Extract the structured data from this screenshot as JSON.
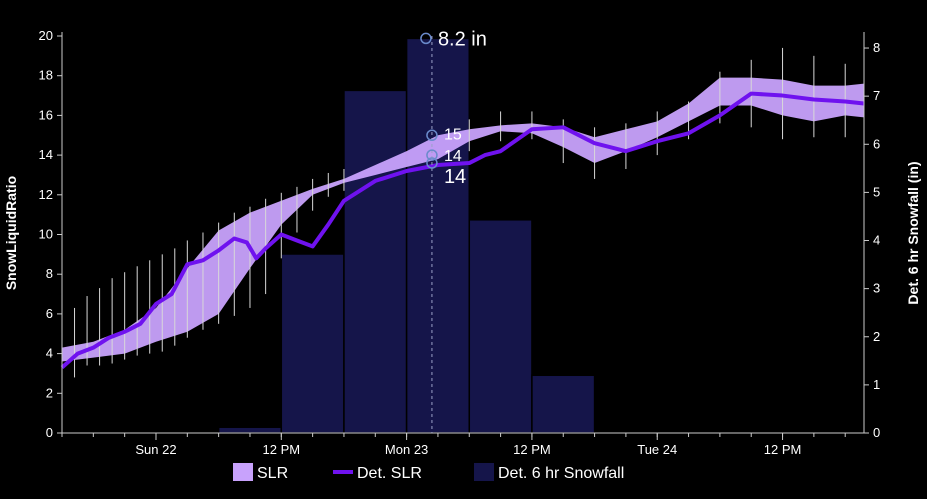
{
  "chart_data": {
    "type": "line",
    "ylabel": "SnowLiquidRatio",
    "y2label": "Det. 6 hr Snowfall (in)",
    "ylim": [
      0,
      20
    ],
    "y2lim": [
      0,
      8.25
    ],
    "yticks": [
      0,
      2,
      4,
      6,
      8,
      10,
      12,
      14,
      16,
      18,
      20
    ],
    "y2ticks": [
      0,
      1,
      2,
      3,
      4,
      5,
      6,
      7,
      8
    ],
    "xlim": [
      0,
      16
    ],
    "xticks": [
      {
        "x": 1.5,
        "label": "Sun 22"
      },
      {
        "x": 3.5,
        "label": "12 PM"
      },
      {
        "x": 5.5,
        "label": "Mon 23"
      },
      {
        "x": 7.5,
        "label": "12 PM"
      },
      {
        "x": 9.5,
        "label": "Tue 24"
      },
      {
        "x": 11.5,
        "label": "12 PM"
      }
    ],
    "legend": [
      {
        "label": "SLR",
        "color": "#c8a2fc",
        "kind": "area"
      },
      {
        "label": "Det. SLR",
        "color": "#6f12ef",
        "kind": "line"
      },
      {
        "label": "Det. 6 hr Snowfall",
        "color": "#15154a",
        "kind": "bar"
      }
    ],
    "snowfall_bars": [
      {
        "x0": 2.5,
        "x1": 3.5,
        "value": 0.12
      },
      {
        "x0": 3.5,
        "x1": 4.5,
        "value": 3.72
      },
      {
        "x0": 4.5,
        "x1": 5.5,
        "value": 7.12
      },
      {
        "x0": 5.5,
        "x1": 6.5,
        "value": 8.2
      },
      {
        "x0": 6.5,
        "x1": 7.5,
        "value": 4.43
      },
      {
        "x0": 7.5,
        "x1": 8.5,
        "value": 1.2
      }
    ],
    "slr_band_upper": [
      [
        0,
        4.3
      ],
      [
        0.5,
        4.6
      ],
      [
        1,
        5.2
      ],
      [
        1.5,
        6.3
      ],
      [
        2,
        8.3
      ],
      [
        2.5,
        10.2
      ],
      [
        3,
        11.1
      ],
      [
        3.5,
        11.7
      ],
      [
        4,
        12.3
      ],
      [
        4.5,
        12.8
      ],
      [
        5,
        13.5
      ],
      [
        5.5,
        14.2
      ],
      [
        6,
        15.0
      ],
      [
        6.5,
        15.3
      ],
      [
        7,
        15.5
      ],
      [
        7.5,
        15.6
      ],
      [
        8,
        15.4
      ],
      [
        8.5,
        14.9
      ],
      [
        9,
        15.3
      ],
      [
        9.5,
        15.7
      ],
      [
        10,
        16.6
      ],
      [
        10.5,
        17.9
      ],
      [
        11,
        17.9
      ],
      [
        11.5,
        17.8
      ],
      [
        12,
        17.5
      ],
      [
        12.5,
        17.5
      ],
      [
        12.8,
        17.6
      ]
    ],
    "slr_band_lower": [
      [
        0,
        3.6
      ],
      [
        0.5,
        3.8
      ],
      [
        1,
        4.0
      ],
      [
        1.5,
        4.6
      ],
      [
        2,
        5.1
      ],
      [
        2.5,
        6.0
      ],
      [
        3,
        8.3
      ],
      [
        3.5,
        10.5
      ],
      [
        4,
        12.0
      ],
      [
        4.5,
        12.6
      ],
      [
        5,
        13.0
      ],
      [
        5.5,
        13.4
      ],
      [
        6,
        13.8
      ],
      [
        6.5,
        14.7
      ],
      [
        7,
        15.2
      ],
      [
        7.5,
        15.1
      ],
      [
        8,
        14.4
      ],
      [
        8.5,
        13.6
      ],
      [
        9,
        14.2
      ],
      [
        9.5,
        14.9
      ],
      [
        10,
        15.7
      ],
      [
        10.5,
        16.5
      ],
      [
        11,
        16.5
      ],
      [
        11.5,
        16.0
      ],
      [
        12,
        15.7
      ],
      [
        12.5,
        16.0
      ],
      [
        12.8,
        15.9
      ]
    ],
    "det_slr": [
      [
        0,
        3.3
      ],
      [
        0.25,
        4.0
      ],
      [
        0.5,
        4.3
      ],
      [
        0.75,
        4.8
      ],
      [
        1,
        5.1
      ],
      [
        1.25,
        5.5
      ],
      [
        1.5,
        6.5
      ],
      [
        1.75,
        7.0
      ],
      [
        2,
        8.5
      ],
      [
        2.25,
        8.7
      ],
      [
        2.5,
        9.2
      ],
      [
        2.75,
        9.8
      ],
      [
        2.95,
        9.6
      ],
      [
        3.1,
        8.8
      ],
      [
        3.25,
        9.3
      ],
      [
        3.5,
        10.0
      ],
      [
        3.75,
        9.7
      ],
      [
        4,
        9.4
      ],
      [
        4.25,
        10.5
      ],
      [
        4.5,
        11.7
      ],
      [
        5,
        12.7
      ],
      [
        5.5,
        13.2
      ],
      [
        6,
        13.5
      ],
      [
        6.5,
        13.6
      ],
      [
        6.75,
        14.0
      ],
      [
        7,
        14.2
      ],
      [
        7.5,
        15.3
      ],
      [
        8,
        15.4
      ],
      [
        8.5,
        14.6
      ],
      [
        9,
        14.2
      ],
      [
        9.5,
        14.7
      ],
      [
        10,
        15.1
      ],
      [
        10.5,
        16.0
      ],
      [
        11,
        17.1
      ],
      [
        11.5,
        17.0
      ],
      [
        12,
        16.8
      ],
      [
        12.5,
        16.7
      ],
      [
        12.8,
        16.6
      ]
    ],
    "spread_whiskers": [
      [
        0,
        2.2,
        5.7
      ],
      [
        0.2,
        2.8,
        6.3
      ],
      [
        0.4,
        3.4,
        6.9
      ],
      [
        0.6,
        3.4,
        7.3
      ],
      [
        0.8,
        3.5,
        7.8
      ],
      [
        1,
        3.7,
        8.1
      ],
      [
        1.2,
        3.9,
        8.4
      ],
      [
        1.4,
        4.0,
        8.7
      ],
      [
        1.6,
        4.1,
        9.0
      ],
      [
        1.8,
        4.4,
        9.3
      ],
      [
        2,
        4.8,
        9.7
      ],
      [
        2.25,
        5.2,
        10.1
      ],
      [
        2.5,
        5.5,
        10.6
      ],
      [
        2.75,
        5.9,
        11.1
      ],
      [
        3,
        6.3,
        11.4
      ],
      [
        3.25,
        7.0,
        11.8
      ],
      [
        3.5,
        8.8,
        12.1
      ],
      [
        3.75,
        10.1,
        12.4
      ],
      [
        4,
        11.2,
        12.8
      ],
      [
        4.25,
        11.9,
        13.1
      ],
      [
        4.5,
        12.2,
        13.3
      ],
      [
        6.5,
        14.2,
        15.8
      ],
      [
        7,
        14.7,
        16.2
      ],
      [
        7.5,
        14.8,
        16.2
      ],
      [
        8,
        13.6,
        15.8
      ],
      [
        8.5,
        12.8,
        15.4
      ],
      [
        9,
        13.3,
        15.6
      ],
      [
        9.5,
        14.0,
        16.2
      ],
      [
        10,
        14.8,
        16.7
      ],
      [
        10.5,
        15.6,
        18.2
      ],
      [
        11,
        15.4,
        18.8
      ],
      [
        11.5,
        14.8,
        19.4
      ],
      [
        12,
        14.9,
        19.0
      ],
      [
        12.5,
        14.9,
        18.6
      ],
      [
        12.8,
        15.0,
        18.4
      ]
    ],
    "hover": {
      "x": 6.0,
      "snowfall_label": "8.2 in",
      "markers": [
        {
          "label": "15",
          "y": 15.0
        },
        {
          "label": "14",
          "y": 14.0
        },
        {
          "label": "14",
          "y": 13.6
        }
      ]
    }
  }
}
